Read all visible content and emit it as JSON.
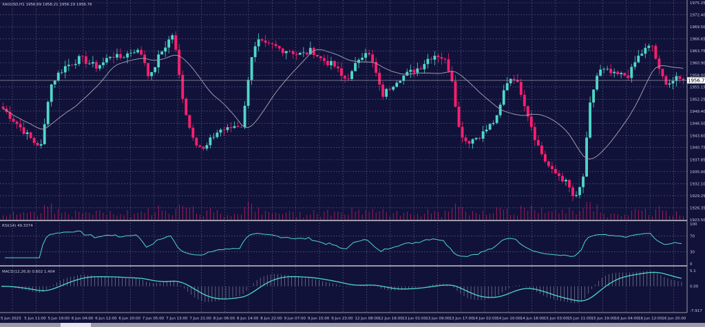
{
  "symbol_header": "XAUUSD,H1  1956.69 1958.21 1956.19 1956.76",
  "current_price": "1956.76",
  "colors": {
    "background": "#11123a",
    "bull": "#4fd8c8",
    "bear": "#ff1f6e",
    "ma": "#9a9aa8",
    "grid": "#5a5c80",
    "indicator": "#4fd8c8"
  },
  "price_axis": [
    "1975.25",
    "1972.40",
    "1969.50",
    "1966.65",
    "1963.75",
    "1960.90",
    "1958.00",
    "1955.15",
    "1952.25",
    "1949.40",
    "1946.50",
    "1943.60",
    "1940.75",
    "1937.85",
    "1935.00",
    "1932.10",
    "1929.25",
    "1926.35",
    "1923.50"
  ],
  "rsi": {
    "label": "RSI(14) 49.3374",
    "axis": [
      "100",
      "70",
      "30",
      "0"
    ]
  },
  "macd": {
    "label": "MACD(12,26,9) 0.602 1.404",
    "axis": [
      "5.1",
      "0.00",
      "-7.917"
    ]
  },
  "time_axis": [
    "5 Jun 2023",
    "5 Jun 11:00",
    "5 Jun 19:00",
    "6 Jun 04:00",
    "6 Jun 12:00",
    "6 Jun 20:00",
    "7 Jun 05:00",
    "7 Jun 13:00",
    "7 Jun 21:00",
    "8 Jun 06:00",
    "8 Jun 14:00",
    "8 Jun 22:00",
    "9 Jun 07:00",
    "9 Jun 15:00",
    "9 Jun 23:00",
    "12 Jun 08:00",
    "12 Jun 16:00",
    "13 Jun 01:00",
    "13 Jun 09:00",
    "13 Jun 17:00",
    "14 Jun 02:00",
    "14 Jun 10:00",
    "14 Jun 18:00",
    "15 Jun 03:00",
    "15 Jun 11:00",
    "15 Jun 19:00",
    "16 Jun 04:00",
    "16 Jun 12:00",
    "16 Jun 20:00"
  ],
  "chart_data": {
    "type": "candlestick",
    "ylim": [
      1923.5,
      1975.25
    ],
    "closes": [
      1950,
      1948,
      1946,
      1944,
      1942,
      1941,
      1955,
      1958,
      1960,
      1961,
      1962,
      1961,
      1960,
      1961,
      1963,
      1962,
      1963,
      1964,
      1963,
      1957,
      1962,
      1965,
      1968,
      1955,
      1946,
      1942,
      1940,
      1943,
      1945,
      1945,
      1946,
      1946,
      1962,
      1966,
      1965,
      1965,
      1964,
      1964,
      1963,
      1963,
      1964,
      1962,
      1961,
      1960,
      1957,
      1958,
      1962,
      1964,
      1960,
      1953,
      1955,
      1957,
      1958,
      1959,
      1960,
      1962,
      1963,
      1962,
      1958,
      1945,
      1942,
      1943,
      1944,
      1946,
      1948,
      1956,
      1958,
      1954,
      1948,
      1942,
      1938,
      1935,
      1934,
      1932,
      1928,
      1933,
      1952,
      1959,
      1959,
      1958,
      1958,
      1958,
      1962,
      1964,
      1965,
      1958,
      1956,
      1957,
      1956.76
    ]
  }
}
